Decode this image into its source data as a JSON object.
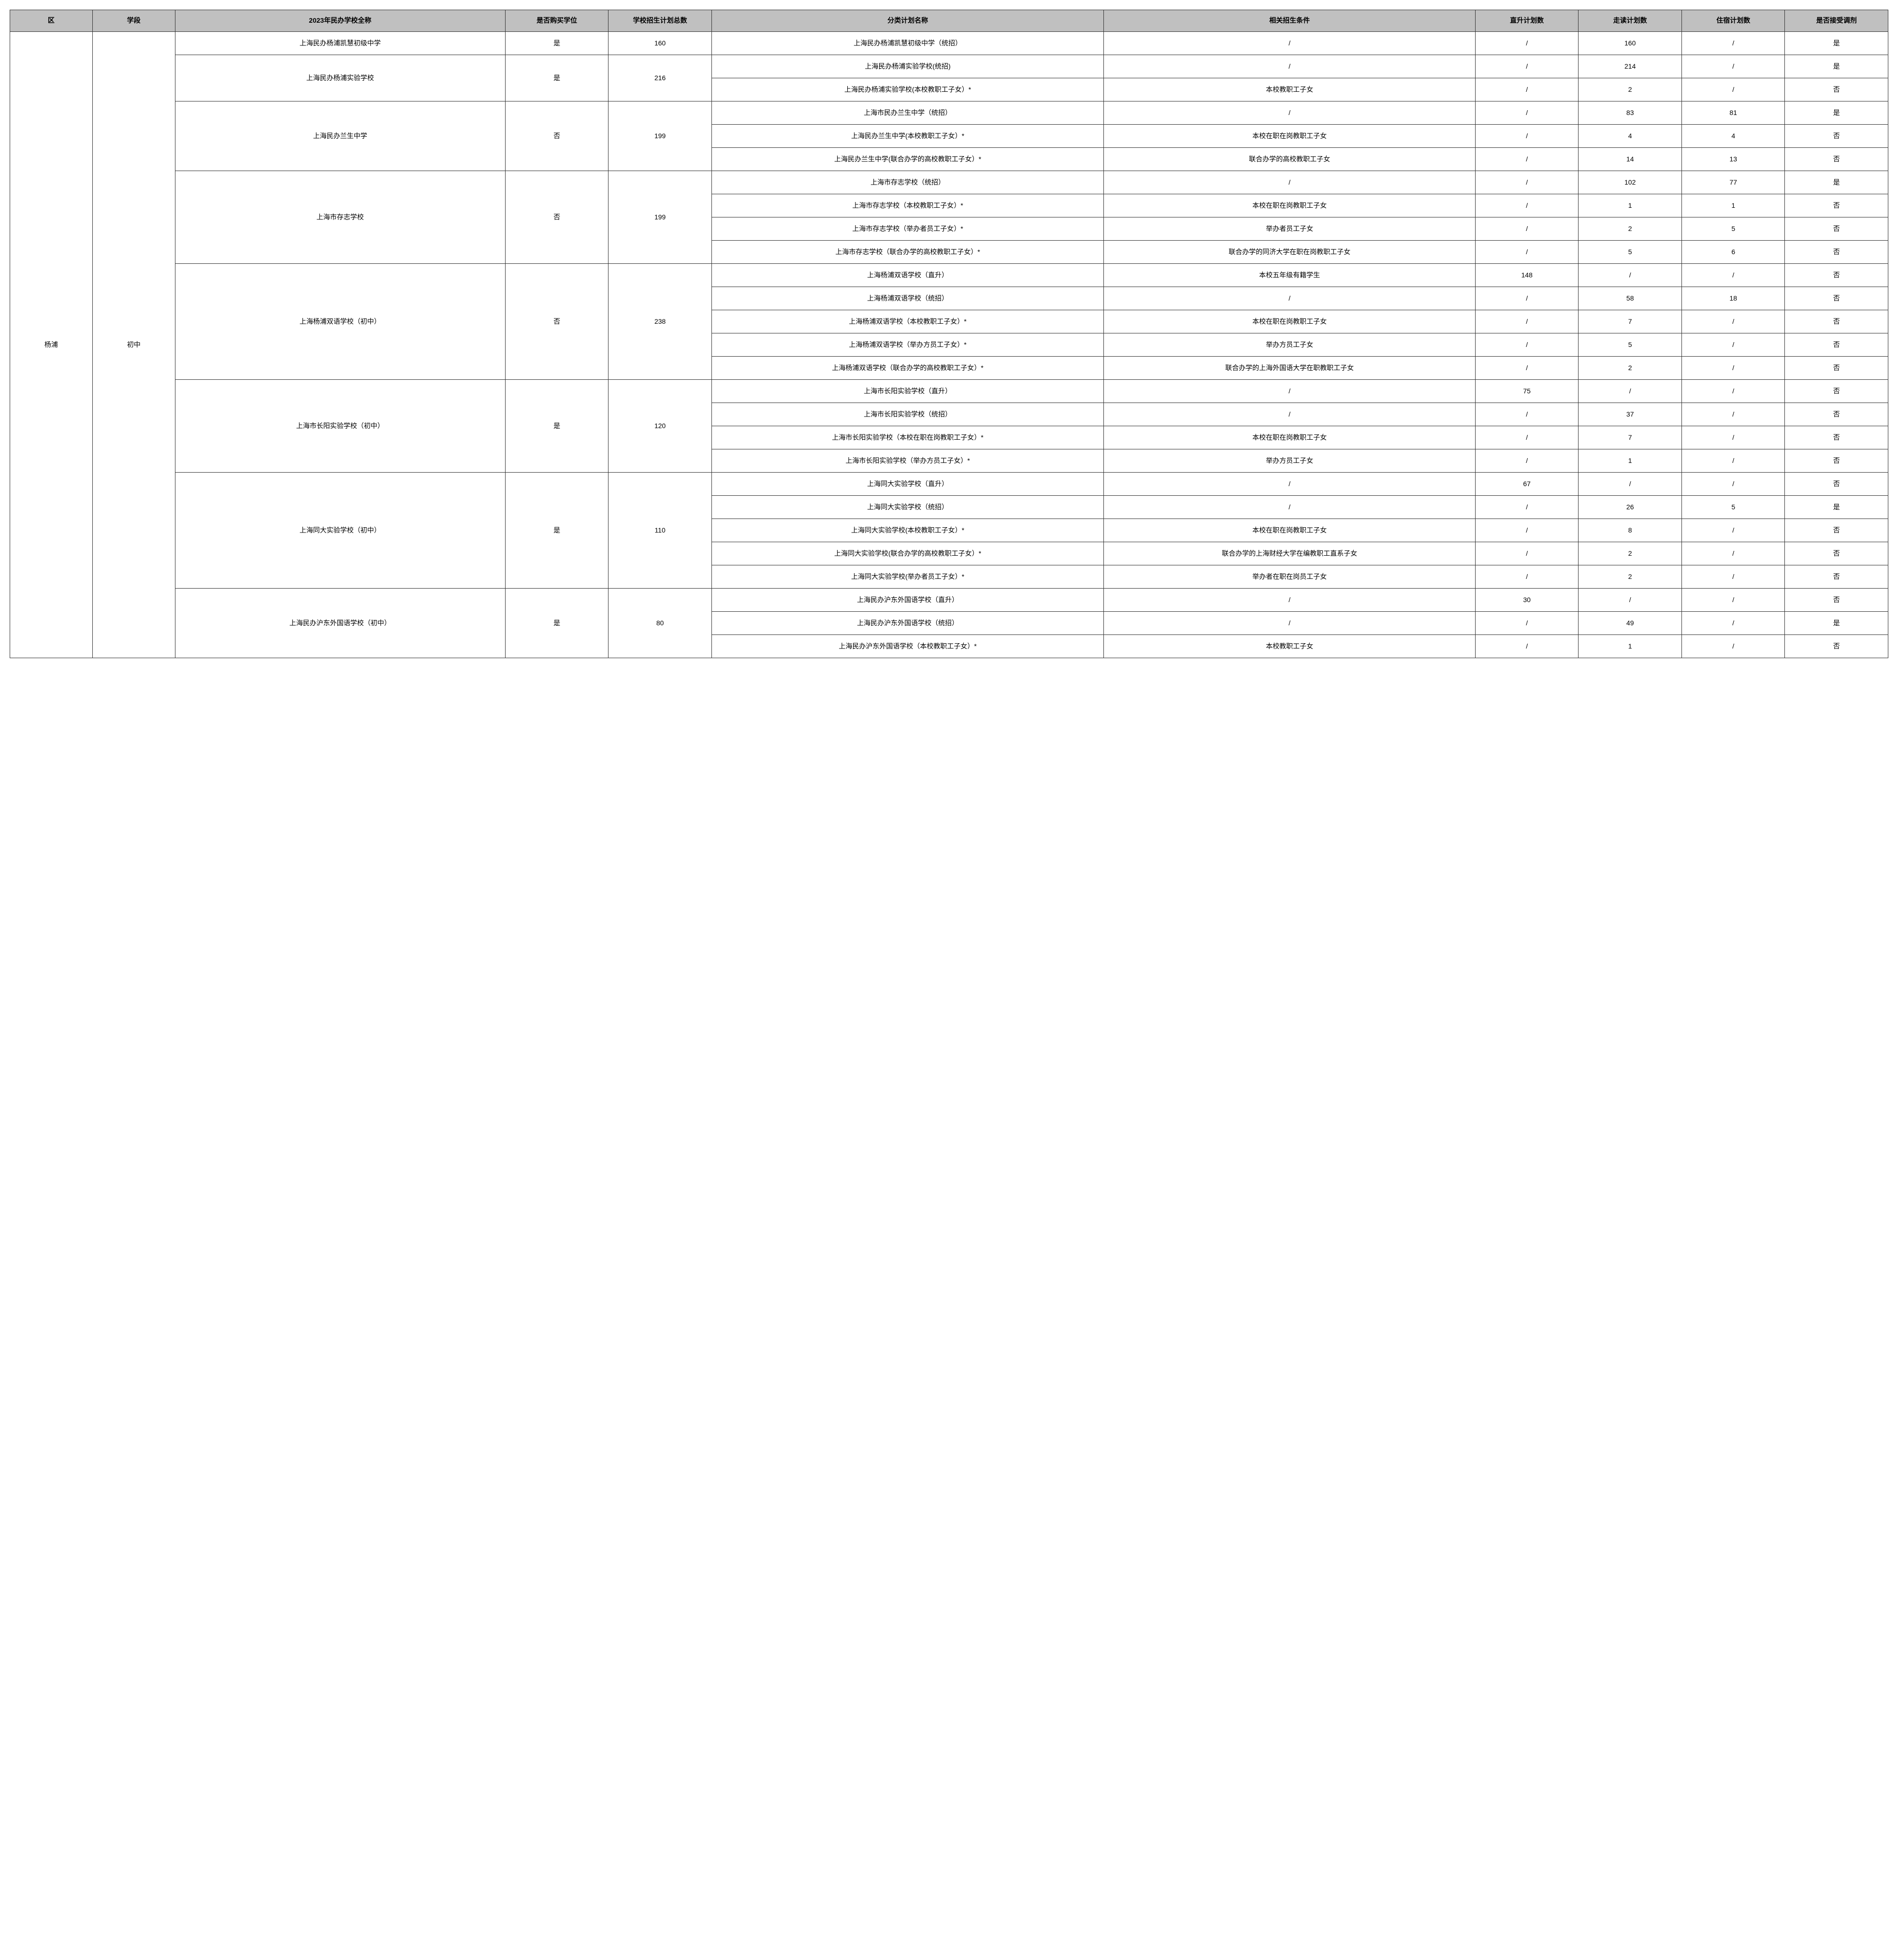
{
  "headers": {
    "district": "区",
    "stage": "学段",
    "school_name": "2023年民办学校全称",
    "buy_seat": "是否购买学位",
    "total_plan": "学校招生计划总数",
    "plan_name": "分类计划名称",
    "conditions": "相关招生条件",
    "direct_count": "直升计划数",
    "day_count": "走读计划数",
    "board_count": "住宿计划数",
    "accept_adjust": "是否接受调剂"
  },
  "district": "杨浦",
  "stage": "初中",
  "schools": [
    {
      "name": "上海民办杨浦凯慧初级中学",
      "buy_seat": "是",
      "total": "160",
      "plans": [
        {
          "plan": "上海民办杨浦凯慧初级中学（统招）",
          "cond": "/",
          "direct": "/",
          "day": "160",
          "board": "/",
          "adjust": "是"
        }
      ]
    },
    {
      "name": "上海民办杨浦实验学校",
      "buy_seat": "是",
      "total": "216",
      "plans": [
        {
          "plan": "上海民办杨浦实验学校(统招)",
          "cond": "/",
          "direct": "/",
          "day": "214",
          "board": "/",
          "adjust": "是"
        },
        {
          "plan": "上海民办杨浦实验学校(本校教职工子女）*",
          "cond": "本校教职工子女",
          "direct": "/",
          "day": "2",
          "board": "/",
          "adjust": "否"
        }
      ]
    },
    {
      "name": "上海民办兰生中学",
      "buy_seat": "否",
      "total": "199",
      "plans": [
        {
          "plan": "上海市民办兰生中学（统招）",
          "cond": "/",
          "direct": "/",
          "day": "83",
          "board": "81",
          "adjust": "是"
        },
        {
          "plan": "上海民办兰生中学(本校教职工子女）*",
          "cond": "本校在职在岗教职工子女",
          "direct": "/",
          "day": "4",
          "board": "4",
          "adjust": "否"
        },
        {
          "plan": "上海民办兰生中学(联合办学的高校教职工子女）*",
          "cond": "联合办学的高校教职工子女",
          "direct": "/",
          "day": "14",
          "board": "13",
          "adjust": "否"
        }
      ]
    },
    {
      "name": "上海市存志学校",
      "buy_seat": "否",
      "total": "199",
      "plans": [
        {
          "plan": "上海市存志学校（统招）",
          "cond": "/",
          "direct": "/",
          "day": "102",
          "board": "77",
          "adjust": "是"
        },
        {
          "plan": "上海市存志学校（本校教职工子女）*",
          "cond": "本校在职在岗教职工子女",
          "direct": "/",
          "day": "1",
          "board": "1",
          "adjust": "否"
        },
        {
          "plan": "上海市存志学校（举办者员工子女）*",
          "cond": "举办者员工子女",
          "direct": "/",
          "day": "2",
          "board": "5",
          "adjust": "否"
        },
        {
          "plan": "上海市存志学校（联合办学的高校教职工子女）*",
          "cond": "联合办学的同济大学在职在岗教职工子女",
          "direct": "/",
          "day": "5",
          "board": "6",
          "adjust": "否"
        }
      ]
    },
    {
      "name": "上海杨浦双语学校（初中）",
      "buy_seat": "否",
      "total": "238",
      "plans": [
        {
          "plan": "上海杨浦双语学校（直升）",
          "cond": "本校五年级有籍学生",
          "direct": "148",
          "day": "/",
          "board": "/",
          "adjust": "否"
        },
        {
          "plan": "上海杨浦双语学校（统招）",
          "cond": "/",
          "direct": "/",
          "day": "58",
          "board": "18",
          "adjust": "否"
        },
        {
          "plan": "上海杨浦双语学校（本校教职工子女）*",
          "cond": "本校在职在岗教职工子女",
          "direct": "/",
          "day": "7",
          "board": "/",
          "adjust": "否"
        },
        {
          "plan": "上海杨浦双语学校（举办方员工子女）*",
          "cond": "举办方员工子女",
          "direct": "/",
          "day": "5",
          "board": "/",
          "adjust": "否"
        },
        {
          "plan": "上海杨浦双语学校（联合办学的高校教职工子女）*",
          "cond": "联合办学的上海外国语大学在职教职工子女",
          "direct": "/",
          "day": "2",
          "board": "/",
          "adjust": "否"
        }
      ]
    },
    {
      "name": "上海市长阳实验学校（初中）",
      "buy_seat": "是",
      "total": "120",
      "plans": [
        {
          "plan": "上海市长阳实验学校（直升）",
          "cond": "/",
          "direct": "75",
          "day": "/",
          "board": "/",
          "adjust": "否"
        },
        {
          "plan": "上海市长阳实验学校（统招）",
          "cond": "/",
          "direct": "/",
          "day": "37",
          "board": "/",
          "adjust": "否"
        },
        {
          "plan": "上海市长阳实验学校（本校在职在岗教职工子女）*",
          "cond": "本校在职在岗教职工子女",
          "direct": "/",
          "day": "7",
          "board": "/",
          "adjust": "否"
        },
        {
          "plan": "上海市长阳实验学校（举办方员工子女）*",
          "cond": "举办方员工子女",
          "direct": "/",
          "day": "1",
          "board": "/",
          "adjust": "否"
        }
      ]
    },
    {
      "name": "上海同大实验学校（初中）",
      "buy_seat": "是",
      "total": "110",
      "plans": [
        {
          "plan": "上海同大实验学校（直升）",
          "cond": "/",
          "direct": "67",
          "day": "/",
          "board": "/",
          "adjust": "否"
        },
        {
          "plan": "上海同大实验学校（统招）",
          "cond": "/",
          "direct": "/",
          "day": "26",
          "board": "5",
          "adjust": "是"
        },
        {
          "plan": "上海同大实验学校(本校教职工子女）*",
          "cond": "本校在职在岗教职工子女",
          "direct": "/",
          "day": "8",
          "board": "/",
          "adjust": "否"
        },
        {
          "plan": "上海同大实验学校(联合办学的高校教职工子女）*",
          "cond": "联合办学的上海财经大学在编教职工直系子女",
          "direct": "/",
          "day": "2",
          "board": "/",
          "adjust": "否"
        },
        {
          "plan": "上海同大实验学校(举办者员工子女）*",
          "cond": "举办者在职在岗员工子女",
          "direct": "/",
          "day": "2",
          "board": "/",
          "adjust": "否"
        }
      ]
    },
    {
      "name": "上海民办沪东外国语学校（初中）",
      "buy_seat": "是",
      "total": "80",
      "plans": [
        {
          "plan": "上海民办沪东外国语学校（直升）",
          "cond": "/",
          "direct": "30",
          "day": "/",
          "board": "/",
          "adjust": "否"
        },
        {
          "plan": "上海民办沪东外国语学校（统招）",
          "cond": "/",
          "direct": "/",
          "day": "49",
          "board": "/",
          "adjust": "是"
        },
        {
          "plan": "上海民办沪东外国语学校（本校教职工子女）*",
          "cond": "本校教职工子女",
          "direct": "/",
          "day": "1",
          "board": "/",
          "adjust": "否"
        }
      ]
    }
  ]
}
